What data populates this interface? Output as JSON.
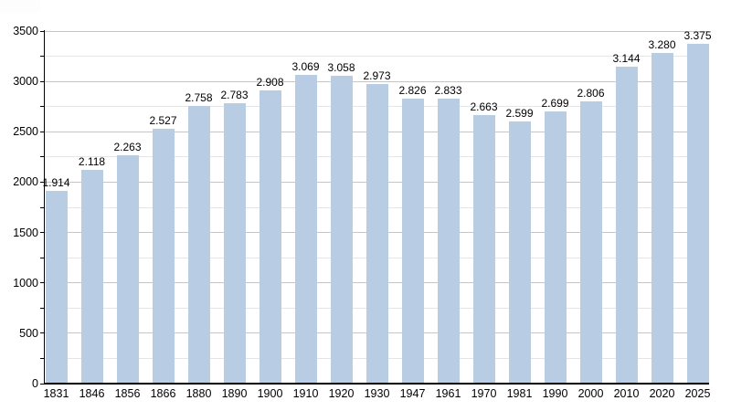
{
  "chart_data": {
    "type": "bar",
    "title": "",
    "xlabel": "",
    "ylabel": "",
    "categories": [
      "1831",
      "1846",
      "1856",
      "1866",
      "1880",
      "1890",
      "1900",
      "1910",
      "1920",
      "1930",
      "1947",
      "1961",
      "1970",
      "1981",
      "1990",
      "2000",
      "2010",
      "2020",
      "2025"
    ],
    "values": [
      1914,
      2118,
      2263,
      2527,
      2758,
      2783,
      2908,
      3069,
      3058,
      2973,
      2826,
      2833,
      2663,
      2599,
      2699,
      2806,
      3144,
      3280,
      3375
    ],
    "value_labels": [
      "1.914",
      "2.118",
      "2.263",
      "2.527",
      "2.758",
      "2.783",
      "2.908",
      "3.069",
      "3.058",
      "2.973",
      "2.826",
      "2.833",
      "2.663",
      "2.599",
      "2.699",
      "2.806",
      "3.144",
      "3.280",
      "3.375"
    ],
    "ylim": [
      0,
      3500
    ],
    "y_tick_interval": 500,
    "y_minor_tick_interval": 250,
    "y_tick_labels": [
      "0",
      "500",
      "1000",
      "1500",
      "2000",
      "2500",
      "3000",
      "3500"
    ],
    "grid": true,
    "legend": false,
    "bar_color": "#b8cce4",
    "axis_color": "#000000",
    "major_grid_color": "#c6c6c6",
    "minor_grid_color": "#e5e5e5",
    "background_color": "#ffffff"
  }
}
